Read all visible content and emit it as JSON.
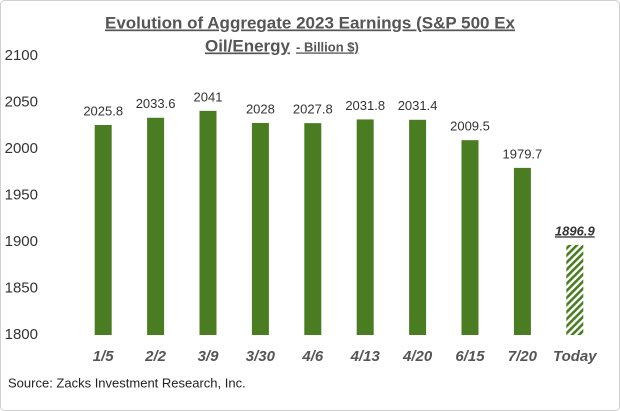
{
  "chart_data": {
    "type": "bar",
    "title": [
      "Evolution of Aggregate 2023 Earnings (S&P 500 Ex",
      "Oil/Energy"
    ],
    "subtitle": "- Billion $)",
    "categories": [
      "1/5",
      "2/2",
      "3/9",
      "3/30",
      "4/6",
      "4/13",
      "4/20",
      "6/15",
      "7/20",
      "Today"
    ],
    "values": [
      2025.8,
      2033.6,
      2041,
      2028,
      2027.8,
      2031.8,
      2031.4,
      2009.5,
      1979.7,
      1896.9
    ],
    "hatched": [
      false,
      false,
      false,
      false,
      false,
      false,
      false,
      false,
      false,
      true
    ],
    "color": "#4a7d22",
    "ylim": [
      1800,
      2100
    ],
    "yticks": [
      1800,
      1850,
      1900,
      1950,
      2000,
      2050,
      2100
    ],
    "grid": false,
    "source": "Source: Zacks Investment Research, Inc."
  }
}
